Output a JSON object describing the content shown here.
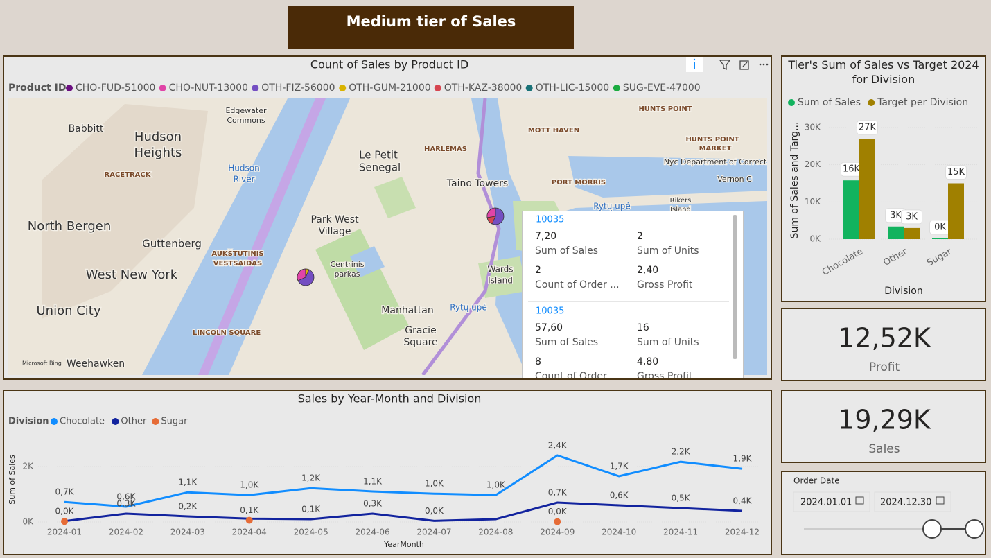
{
  "header": {
    "title": "Medium tier of Sales"
  },
  "map": {
    "title": "Count of Sales by Product ID",
    "legend_title": "Product ID",
    "legend": [
      {
        "name": "CHO-FUD-51000",
        "color": "#6b0f80"
      },
      {
        "name": "CHO-NUT-13000",
        "color": "#e044a7"
      },
      {
        "name": "OTH-FIZ-56000",
        "color": "#744ec2"
      },
      {
        "name": "OTH-GUM-21000",
        "color": "#d9b300"
      },
      {
        "name": "OTH-KAZ-38000",
        "color": "#d64550"
      },
      {
        "name": "OTH-LIC-15000",
        "color": "#197278"
      },
      {
        "name": "SUG-EVE-47000",
        "color": "#1aab40"
      }
    ],
    "places": [
      "Edgewater",
      "Commons",
      "Babbitt",
      "Hudson",
      "Heights",
      "RACETRACK",
      "Hudson",
      "River",
      "Le Petit",
      "Senegal",
      "HARLEMAS",
      "MOTT HAVEN",
      "HUNTS POINT",
      "HUNTS POINT",
      "MARKET",
      "Nyc Department of Correct",
      "Vernon C",
      "Taino Towers",
      "PORT MORRIS",
      "Rytų upė",
      "North Bergen",
      "Park West",
      "Village",
      "Guttenberg",
      "AUKŠTUTINIS",
      "VESTSAIDAS",
      "Centrinis",
      "parkas",
      "West New York",
      "Wards",
      "Island",
      "Union City",
      "Manhattan",
      "Rytų upė",
      "Gracie",
      "Square",
      "LINCOLN SQUARE",
      "Weehawken",
      "Rikers",
      "Island"
    ],
    "attribution": "Microsoft Bing",
    "tooltip": [
      {
        "id": "10035",
        "fields": [
          {
            "value": "7,20",
            "label": "Sum of Sales"
          },
          {
            "value": "2",
            "label": "Sum of Units"
          },
          {
            "value": "2",
            "label": "Count of Order ..."
          },
          {
            "value": "2,40",
            "label": "Gross Profit"
          }
        ]
      },
      {
        "id": "10035",
        "fields": [
          {
            "value": "57,60",
            "label": "Sum of Sales"
          },
          {
            "value": "16",
            "label": "Sum of Units"
          },
          {
            "value": "8",
            "label": "Count of Order ..."
          },
          {
            "value": "4,80",
            "label": "Gross Profit"
          }
        ]
      }
    ]
  },
  "chart_data": [
    {
      "type": "bar",
      "title": "Tier's Sum of Sales vs Target 2024 for Division",
      "x_label": "Division",
      "y_label": "Sum of Sales and Targ...",
      "categories": [
        "Chocolate",
        "Other",
        "Sugar"
      ],
      "series": [
        {
          "name": "Sum of Sales",
          "color": "#12b35e",
          "values": [
            15800,
            3400,
            200
          ],
          "value_labels": [
            "16K",
            "3K",
            "0K"
          ]
        },
        {
          "name": "Target per Division",
          "color": "#a08000",
          "values": [
            27000,
            3000,
            15000
          ],
          "value_labels": [
            "27K",
            "3K",
            "15K"
          ]
        }
      ],
      "ylim": [
        0,
        30000
      ],
      "yticks": [
        {
          "value": 0,
          "label": "0K"
        },
        {
          "value": 10000,
          "label": "10K"
        },
        {
          "value": 20000,
          "label": "20K"
        },
        {
          "value": 30000,
          "label": "30K"
        }
      ],
      "legend_position": "top-left"
    },
    {
      "type": "line",
      "title": "Sales by Year-Month and Division",
      "x_label": "YearMonth",
      "y_label": "Sum of Sales",
      "legend_title": "Division",
      "categories": [
        "2024-01",
        "2024-02",
        "2024-03",
        "2024-04",
        "2024-05",
        "2024-06",
        "2024-07",
        "2024-08",
        "2024-09",
        "2024-10",
        "2024-11",
        "2024-12"
      ],
      "series": [
        {
          "name": "Chocolate",
          "color": "#118dff",
          "values": [
            720,
            550,
            1070,
            970,
            1220,
            1100,
            1020,
            970,
            2400,
            1650,
            2170,
            1920
          ],
          "value_labels": [
            "0,7K",
            "0,6K",
            "1,1K",
            "1,0K",
            "1,2K",
            "1,1K",
            "1,0K",
            "1,0K",
            "2,4K",
            "1,7K",
            "2,2K",
            "1,9K"
          ]
        },
        {
          "name": "Other",
          "color": "#12239e",
          "values": [
            30,
            300,
            200,
            120,
            100,
            300,
            40,
            100,
            700,
            600,
            500,
            400
          ],
          "value_labels": [
            null,
            "0,3K",
            "0,2K",
            null,
            "0,1K",
            "0,3K",
            "0,0K",
            null,
            "0,7K",
            "0,6K",
            "0,5K",
            "0,4K"
          ]
        },
        {
          "name": "Sugar",
          "color": "#e66c37",
          "markers": true,
          "values": [
            20,
            null,
            null,
            60,
            null,
            null,
            null,
            null,
            10,
            null,
            null,
            null
          ],
          "value_labels": [
            "0,0K",
            null,
            null,
            "0,1K",
            null,
            null,
            null,
            null,
            "0,0K",
            null,
            null,
            null
          ]
        }
      ],
      "ylim": [
        0,
        3000
      ],
      "yticks": [
        {
          "value": 0,
          "label": "0K"
        },
        {
          "value": 2000,
          "label": "2K"
        }
      ],
      "legend_position": "top-left"
    }
  ],
  "cards": [
    {
      "value": "12,52K",
      "label": "Profit"
    },
    {
      "value": "19,29K",
      "label": "Sales"
    }
  ],
  "slicer": {
    "title": "Order Date",
    "start": "2024.01.01",
    "end": "2024.12.30"
  }
}
